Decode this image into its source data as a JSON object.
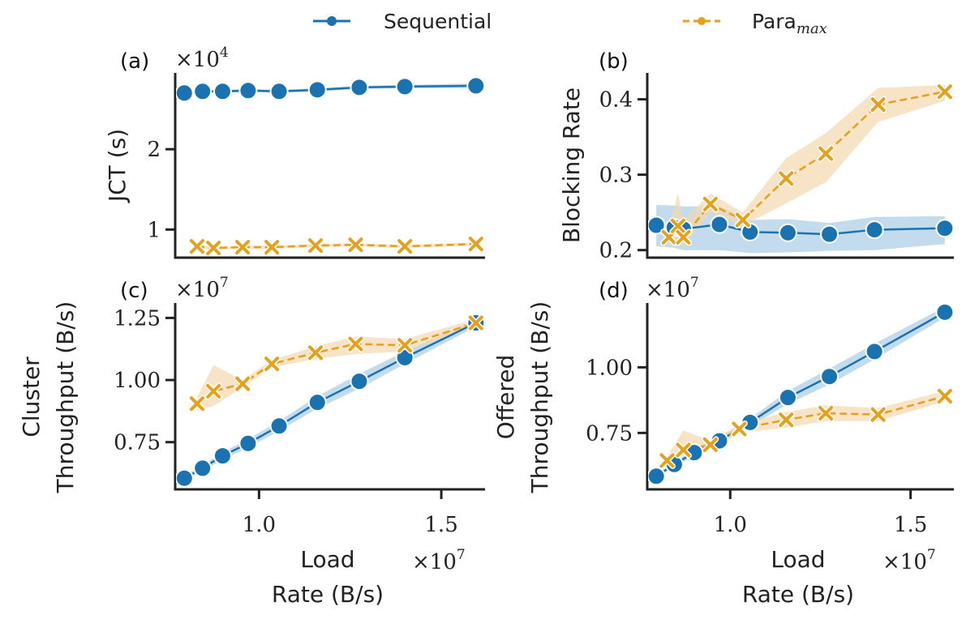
{
  "legend": {
    "items": [
      {
        "name": "Sequential",
        "sub": "",
        "color": "#1f77b4",
        "marker": "circle",
        "dash": "solid"
      },
      {
        "name": "Para",
        "sub": "max",
        "color": "#e0a020",
        "marker": "x",
        "dash": "dashed"
      }
    ]
  },
  "colors": {
    "sequential": "#1a72b0",
    "sequential_band": "#a9cde6",
    "para": "#e3a11d",
    "para_band": "#f3d7ae",
    "axis": "#222222"
  },
  "chart_data": [
    {
      "id": "a",
      "panel_label": "(a)",
      "type": "line",
      "title": "",
      "xlabel": "",
      "ylabel": "JCT (s)",
      "y_multiplier": "×10^4",
      "xlim": [
        0.77,
        1.62
      ],
      "ylim": [
        0.65,
        2.95
      ],
      "yticks": [
        1,
        2
      ],
      "ytick_labels": [
        "1",
        "2"
      ],
      "xticks": [],
      "xtick_labels": [],
      "series": [
        {
          "name": "Sequential",
          "x": [
            0.795,
            0.845,
            0.9,
            0.97,
            1.055,
            1.16,
            1.275,
            1.4,
            1.595
          ],
          "y": [
            2.7,
            2.72,
            2.72,
            2.73,
            2.72,
            2.74,
            2.77,
            2.78,
            2.79
          ],
          "lo": [
            2.68,
            2.7,
            2.7,
            2.71,
            2.7,
            2.72,
            2.75,
            2.76,
            2.76
          ],
          "hi": [
            2.72,
            2.74,
            2.74,
            2.75,
            2.74,
            2.76,
            2.79,
            2.8,
            2.82
          ]
        },
        {
          "name": "Para_max",
          "x": [
            0.83,
            0.875,
            0.955,
            1.035,
            1.155,
            1.265,
            1.4,
            1.595
          ],
          "y": [
            0.79,
            0.77,
            0.78,
            0.78,
            0.8,
            0.81,
            0.79,
            0.82
          ],
          "lo": [
            0.77,
            0.75,
            0.76,
            0.76,
            0.78,
            0.79,
            0.77,
            0.8
          ],
          "hi": [
            0.81,
            0.79,
            0.8,
            0.8,
            0.82,
            0.83,
            0.81,
            0.84
          ]
        }
      ]
    },
    {
      "id": "b",
      "panel_label": "(b)",
      "type": "line",
      "title": "",
      "xlabel": "",
      "ylabel": "Blocking Rate",
      "y_multiplier": "",
      "xlim": [
        0.77,
        1.62
      ],
      "ylim": [
        0.19,
        0.435
      ],
      "yticks": [
        0.2,
        0.3,
        0.4
      ],
      "ytick_labels": [
        "0.2",
        "0.3",
        "0.4"
      ],
      "xticks": [],
      "xtick_labels": [],
      "series": [
        {
          "name": "Sequential",
          "x": [
            0.795,
            0.845,
            0.87,
            0.97,
            1.055,
            1.16,
            1.275,
            1.4,
            1.595
          ],
          "y": [
            0.233,
            0.23,
            0.228,
            0.234,
            0.224,
            0.223,
            0.221,
            0.227,
            0.229
          ],
          "lo": [
            0.205,
            0.203,
            0.2,
            0.2,
            0.196,
            0.197,
            0.199,
            0.2,
            0.208
          ],
          "hi": [
            0.26,
            0.259,
            0.258,
            0.258,
            0.24,
            0.241,
            0.236,
            0.244,
            0.245
          ]
        },
        {
          "name": "Para_max",
          "x": [
            0.83,
            0.855,
            0.87,
            0.945,
            1.035,
            1.155,
            1.265,
            1.41,
            1.595
          ],
          "y": [
            0.217,
            0.232,
            0.217,
            0.261,
            0.24,
            0.295,
            0.328,
            0.393,
            0.41
          ],
          "lo": [
            0.205,
            0.215,
            0.205,
            0.25,
            0.232,
            0.262,
            0.29,
            0.37,
            0.398
          ],
          "hi": [
            0.23,
            0.275,
            0.24,
            0.275,
            0.25,
            0.322,
            0.355,
            0.415,
            0.419
          ]
        }
      ]
    },
    {
      "id": "c",
      "panel_label": "(c)",
      "type": "line",
      "title": "",
      "xlabel": "Load\nRate (B/s)",
      "x_multiplier": "×10^7",
      "ylabel": "Cluster\nThroughput (B/s)",
      "y_multiplier": "×10^7",
      "xlim": [
        0.77,
        1.62
      ],
      "ylim": [
        0.56,
        1.31
      ],
      "yticks": [
        0.75,
        1.0,
        1.25
      ],
      "ytick_labels": [
        "0.75",
        "1.00",
        "1.25"
      ],
      "xticks": [
        1.0,
        1.5
      ],
      "xtick_labels": [
        "1.0",
        "1.5"
      ],
      "series": [
        {
          "name": "Sequential",
          "x": [
            0.795,
            0.845,
            0.9,
            0.97,
            1.055,
            1.16,
            1.275,
            1.4,
            1.595
          ],
          "y": [
            0.605,
            0.645,
            0.695,
            0.745,
            0.815,
            0.91,
            0.995,
            1.09,
            1.23
          ],
          "lo": [
            0.595,
            0.632,
            0.68,
            0.728,
            0.795,
            0.885,
            0.965,
            1.065,
            1.215
          ],
          "hi": [
            0.615,
            0.658,
            0.71,
            0.762,
            0.835,
            0.935,
            1.025,
            1.115,
            1.245
          ]
        },
        {
          "name": "Para_max",
          "x": [
            0.83,
            0.875,
            0.955,
            1.035,
            1.155,
            1.265,
            1.4,
            1.595
          ],
          "y": [
            0.905,
            0.955,
            0.985,
            1.065,
            1.11,
            1.145,
            1.14,
            1.23
          ],
          "lo": [
            0.88,
            0.895,
            0.97,
            1.05,
            1.085,
            1.105,
            1.115,
            1.215
          ],
          "hi": [
            0.93,
            1.06,
            1.0,
            1.08,
            1.135,
            1.175,
            1.165,
            1.245
          ]
        }
      ]
    },
    {
      "id": "d",
      "panel_label": "(d)",
      "type": "line",
      "title": "",
      "xlabel": "Load\nRate (B/s)",
      "x_multiplier": "×10^7",
      "ylabel": "Offered\nThroughput (B/s)",
      "y_multiplier": "×10^7",
      "xlim": [
        0.77,
        1.62
      ],
      "ylim": [
        0.535,
        1.245
      ],
      "yticks": [
        0.75,
        1.0
      ],
      "ytick_labels": [
        "0.75",
        "1.00"
      ],
      "xticks": [
        1.0,
        1.5
      ],
      "xtick_labels": [
        "1.0",
        "1.5"
      ],
      "series": [
        {
          "name": "Sequential",
          "x": [
            0.795,
            0.845,
            0.9,
            0.97,
            1.055,
            1.16,
            1.275,
            1.4,
            1.595
          ],
          "y": [
            0.585,
            0.63,
            0.675,
            0.72,
            0.79,
            0.885,
            0.965,
            1.06,
            1.21
          ],
          "lo": [
            0.578,
            0.62,
            0.662,
            0.705,
            0.775,
            0.86,
            0.935,
            1.03,
            1.19
          ],
          "hi": [
            0.592,
            0.64,
            0.688,
            0.735,
            0.805,
            0.91,
            0.995,
            1.09,
            1.23
          ]
        },
        {
          "name": "Para_max",
          "x": [
            0.825,
            0.87,
            0.945,
            1.025,
            1.155,
            1.265,
            1.41,
            1.595
          ],
          "y": [
            0.645,
            0.685,
            0.705,
            0.765,
            0.8,
            0.825,
            0.82,
            0.89
          ],
          "lo": [
            0.63,
            0.665,
            0.69,
            0.75,
            0.77,
            0.795,
            0.795,
            0.87
          ],
          "hi": [
            0.66,
            0.76,
            0.72,
            0.78,
            0.83,
            0.855,
            0.845,
            0.91
          ]
        }
      ]
    }
  ]
}
